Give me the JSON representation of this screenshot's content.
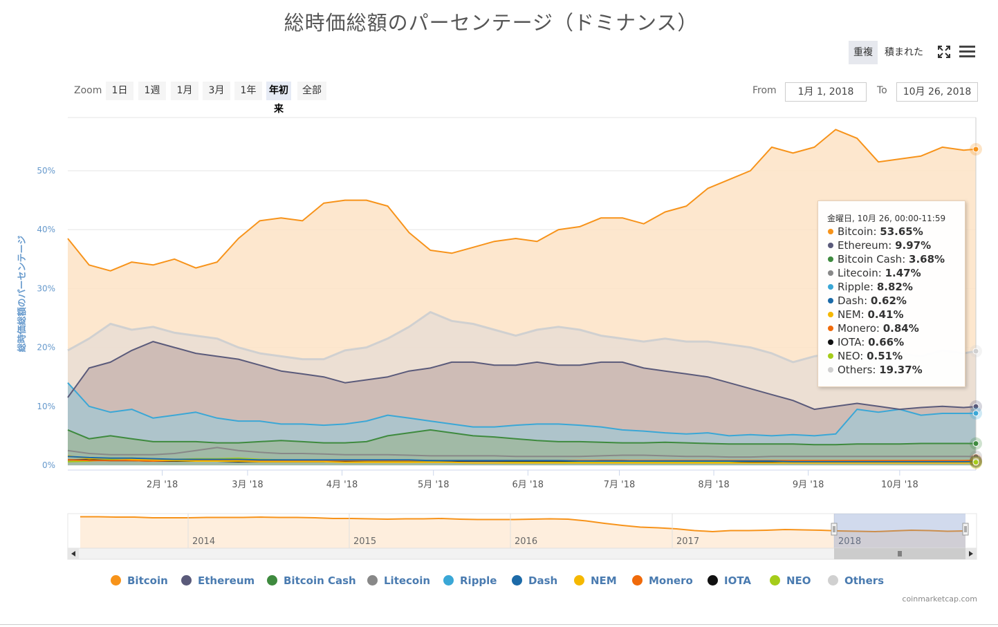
{
  "title": "総時価総額のパーセンテージ（ドミナンス）",
  "toolbar": {
    "overlap_label": "重複",
    "stacked_label": "積まれた",
    "fullscreen_icon": "fullscreen-icon",
    "menu_icon": "hamburger-menu-icon"
  },
  "zoom": {
    "label": "Zoom",
    "buttons": [
      "1日",
      "1週",
      "1月",
      "3月",
      "1年",
      "年初来",
      "全部"
    ],
    "active": "年初来"
  },
  "range": {
    "from_label": "From",
    "from_value": "1月 1, 2018",
    "to_label": "To",
    "to_value": "10月 26, 2018"
  },
  "tooltip": {
    "header": "金曜日, 10月 26, 00:00-11:59",
    "rows": [
      {
        "name": "Bitcoin",
        "value": "53.65%"
      },
      {
        "name": "Ethereum",
        "value": "9.97%"
      },
      {
        "name": "Bitcoin Cash",
        "value": "3.68%"
      },
      {
        "name": "Litecoin",
        "value": "1.47%"
      },
      {
        "name": "Ripple",
        "value": "8.82%"
      },
      {
        "name": "Dash",
        "value": "0.62%"
      },
      {
        "name": "NEM",
        "value": "0.41%"
      },
      {
        "name": "Monero",
        "value": "0.84%"
      },
      {
        "name": "IOTA",
        "value": "0.66%"
      },
      {
        "name": "NEO",
        "value": "0.51%"
      },
      {
        "name": "Others",
        "value": "19.37%"
      }
    ]
  },
  "credits": "coinmarketcap.com",
  "chart_data": {
    "type": "area",
    "title": "総時価総額のパーセンテージ（ドミナンス）",
    "ylabel": "総時価総額のパーセンテージ",
    "ylim": [
      0,
      60
    ],
    "yticks": [
      0,
      10,
      20,
      30,
      40,
      50
    ],
    "ytick_labels": [
      "0%",
      "10%",
      "20%",
      "30%",
      "40%",
      "50%"
    ],
    "xlim": [
      "2018-01-01",
      "2018-10-26"
    ],
    "xticks": [
      {
        "date": "2018-02-01",
        "label": "2月 '18"
      },
      {
        "date": "2018-03-01",
        "label": "3月 '18"
      },
      {
        "date": "2018-04-01",
        "label": "4月 '18"
      },
      {
        "date": "2018-05-01",
        "label": "5月 '18"
      },
      {
        "date": "2018-06-01",
        "label": "6月 '18"
      },
      {
        "date": "2018-07-01",
        "label": "7月 '18"
      },
      {
        "date": "2018-08-01",
        "label": "8月 '18"
      },
      {
        "date": "2018-09-01",
        "label": "9月 '18"
      },
      {
        "date": "2018-10-01",
        "label": "10月 '18"
      }
    ],
    "grid": true,
    "legend_position": "bottom",
    "x": [
      "2018-01-01",
      "2018-01-08",
      "2018-01-15",
      "2018-01-22",
      "2018-01-29",
      "2018-02-05",
      "2018-02-12",
      "2018-02-19",
      "2018-02-26",
      "2018-03-05",
      "2018-03-12",
      "2018-03-19",
      "2018-03-26",
      "2018-04-02",
      "2018-04-09",
      "2018-04-16",
      "2018-04-23",
      "2018-04-30",
      "2018-05-07",
      "2018-05-14",
      "2018-05-21",
      "2018-05-28",
      "2018-06-04",
      "2018-06-11",
      "2018-06-18",
      "2018-06-25",
      "2018-07-02",
      "2018-07-09",
      "2018-07-16",
      "2018-07-23",
      "2018-07-30",
      "2018-08-06",
      "2018-08-13",
      "2018-08-20",
      "2018-08-27",
      "2018-09-03",
      "2018-09-10",
      "2018-09-17",
      "2018-09-24",
      "2018-10-01",
      "2018-10-08",
      "2018-10-15",
      "2018-10-22",
      "2018-10-26"
    ],
    "series": [
      {
        "name": "Bitcoin",
        "color": "#f7931a",
        "fill": "#fde3c6",
        "values": [
          38.5,
          34.0,
          33.0,
          34.5,
          34.0,
          35.0,
          33.5,
          34.5,
          38.5,
          41.5,
          42.0,
          41.5,
          44.5,
          45.0,
          45.0,
          44.0,
          39.5,
          36.5,
          36.0,
          37.0,
          38.0,
          38.5,
          38.0,
          40.0,
          40.5,
          42.0,
          42.0,
          41.0,
          43.0,
          44.0,
          47.0,
          48.5,
          50.0,
          54.0,
          53.0,
          54.0,
          57.0,
          55.5,
          51.5,
          52.0,
          52.5,
          54.0,
          53.5,
          53.65
        ]
      },
      {
        "name": "Ethereum",
        "color": "#5a5a7a",
        "fill": "#c9b6b0",
        "values": [
          11.5,
          16.5,
          17.5,
          19.5,
          21.0,
          20.0,
          19.0,
          18.5,
          18.0,
          17.0,
          16.0,
          15.5,
          15.0,
          14.0,
          14.5,
          15.0,
          16.0,
          16.5,
          17.5,
          17.5,
          17.0,
          17.0,
          17.5,
          17.0,
          17.0,
          17.5,
          17.5,
          16.5,
          16.0,
          15.5,
          15.0,
          14.0,
          13.0,
          12.0,
          11.0,
          9.5,
          10.0,
          10.5,
          10.0,
          9.5,
          9.8,
          10.0,
          9.8,
          9.97
        ]
      },
      {
        "name": "Bitcoin Cash",
        "color": "#3e8a3e",
        "fill": "#9fb8a0",
        "values": [
          6.0,
          4.5,
          5.0,
          4.5,
          4.0,
          4.0,
          4.0,
          3.8,
          3.8,
          4.0,
          4.2,
          4.0,
          3.8,
          3.8,
          4.0,
          5.0,
          5.5,
          6.0,
          5.5,
          5.0,
          4.8,
          4.5,
          4.2,
          4.0,
          4.0,
          3.9,
          3.8,
          3.8,
          3.9,
          3.8,
          3.7,
          3.6,
          3.6,
          3.6,
          3.6,
          3.5,
          3.5,
          3.6,
          3.6,
          3.6,
          3.7,
          3.7,
          3.7,
          3.68
        ]
      },
      {
        "name": "Litecoin",
        "color": "#888888",
        "values": [
          2.5,
          2.0,
          1.8,
          1.8,
          1.8,
          2.0,
          2.5,
          3.0,
          2.5,
          2.2,
          2.0,
          2.0,
          1.9,
          1.8,
          1.8,
          1.8,
          1.7,
          1.6,
          1.6,
          1.6,
          1.6,
          1.5,
          1.5,
          1.5,
          1.5,
          1.6,
          1.7,
          1.7,
          1.6,
          1.5,
          1.5,
          1.4,
          1.4,
          1.5,
          1.5,
          1.5,
          1.5,
          1.5,
          1.5,
          1.5,
          1.5,
          1.5,
          1.5,
          1.47
        ]
      },
      {
        "name": "Ripple",
        "color": "#3aa7d6",
        "fill": "#a8c6cf",
        "values": [
          14.0,
          10.0,
          9.0,
          9.5,
          8.0,
          8.5,
          9.0,
          8.0,
          7.5,
          7.5,
          7.0,
          7.0,
          6.8,
          7.0,
          7.5,
          8.5,
          8.0,
          7.5,
          7.0,
          6.5,
          6.5,
          6.8,
          7.0,
          7.0,
          6.8,
          6.5,
          6.0,
          5.8,
          5.5,
          5.3,
          5.5,
          5.0,
          5.2,
          5.0,
          5.2,
          5.0,
          5.3,
          9.5,
          9.0,
          9.5,
          8.5,
          8.8,
          8.8,
          8.82
        ]
      },
      {
        "name": "Dash",
        "color": "#1c6aa8",
        "values": [
          1.5,
          1.3,
          1.2,
          1.2,
          1.1,
          1.0,
          1.0,
          1.0,
          1.0,
          0.9,
          0.9,
          0.9,
          0.9,
          0.9,
          0.9,
          0.9,
          0.9,
          0.8,
          0.8,
          0.8,
          0.8,
          0.8,
          0.8,
          0.8,
          0.7,
          0.7,
          0.7,
          0.7,
          0.7,
          0.7,
          0.7,
          0.7,
          0.7,
          0.7,
          0.6,
          0.6,
          0.6,
          0.6,
          0.6,
          0.6,
          0.6,
          0.6,
          0.6,
          0.62
        ]
      },
      {
        "name": "NEM",
        "color": "#f5b800",
        "values": [
          1.6,
          1.1,
          1.2,
          1.0,
          0.9,
          0.8,
          0.7,
          0.7,
          0.7,
          0.6,
          0.6,
          0.6,
          0.6,
          0.5,
          0.5,
          0.5,
          0.5,
          0.5,
          0.5,
          0.4,
          0.4,
          0.4,
          0.4,
          0.4,
          0.4,
          0.4,
          0.4,
          0.4,
          0.4,
          0.4,
          0.4,
          0.4,
          0.4,
          0.4,
          0.4,
          0.4,
          0.4,
          0.4,
          0.4,
          0.4,
          0.4,
          0.4,
          0.4,
          0.41
        ]
      },
      {
        "name": "Monero",
        "color": "#f06a0a",
        "values": [
          0.9,
          0.8,
          0.8,
          0.8,
          0.7,
          0.8,
          0.9,
          0.9,
          0.9,
          0.8,
          0.8,
          0.8,
          0.8,
          0.8,
          0.8,
          0.8,
          0.8,
          0.8,
          0.8,
          0.8,
          0.8,
          0.8,
          0.8,
          0.8,
          0.8,
          0.8,
          0.8,
          0.8,
          0.8,
          0.8,
          0.8,
          0.8,
          0.8,
          0.8,
          0.8,
          0.8,
          0.8,
          0.8,
          0.8,
          0.8,
          0.8,
          0.8,
          0.8,
          0.84
        ]
      },
      {
        "name": "IOTA",
        "color": "#111111",
        "values": [
          0.9,
          0.9,
          0.8,
          0.8,
          0.7,
          0.7,
          0.7,
          0.7,
          0.6,
          0.6,
          0.6,
          0.6,
          0.6,
          0.7,
          0.8,
          0.8,
          0.8,
          0.8,
          0.7,
          0.7,
          0.7,
          0.7,
          0.7,
          0.7,
          0.7,
          0.8,
          0.8,
          0.7,
          0.7,
          0.7,
          0.7,
          0.7,
          0.6,
          0.6,
          0.6,
          0.6,
          0.6,
          0.6,
          0.6,
          0.6,
          0.6,
          0.6,
          0.6,
          0.66
        ]
      },
      {
        "name": "NEO",
        "color": "#a5cc1a",
        "values": [
          0.6,
          0.7,
          1.0,
          1.2,
          1.0,
          1.0,
          1.1,
          1.1,
          1.2,
          1.0,
          0.9,
          0.8,
          0.7,
          0.7,
          0.7,
          0.7,
          0.7,
          0.7,
          0.7,
          0.7,
          0.7,
          0.6,
          0.6,
          0.6,
          0.6,
          0.6,
          0.6,
          0.6,
          0.6,
          0.6,
          0.5,
          0.5,
          0.5,
          0.5,
          0.5,
          0.5,
          0.5,
          0.5,
          0.5,
          0.5,
          0.5,
          0.5,
          0.5,
          0.51
        ]
      },
      {
        "name": "Others",
        "color": "#d0d0d0",
        "fill": "#e9ddd4",
        "values": [
          19.5,
          21.5,
          24.0,
          23.0,
          23.5,
          22.5,
          22.0,
          21.5,
          20.0,
          19.0,
          18.5,
          18.0,
          18.0,
          19.5,
          20.0,
          21.5,
          23.5,
          26.0,
          24.5,
          24.0,
          23.0,
          22.0,
          23.0,
          23.5,
          23.0,
          22.0,
          21.5,
          21.0,
          21.5,
          21.0,
          21.0,
          20.5,
          20.0,
          19.0,
          17.5,
          18.5,
          19.0,
          18.5,
          19.0,
          19.0,
          18.5,
          19.5,
          19.0,
          19.37
        ]
      }
    ],
    "navigator": {
      "xticks": [
        "2014",
        "2015",
        "2016",
        "2017",
        "2018"
      ],
      "bitcoin": [
        95,
        95,
        94,
        94,
        92,
        92,
        92,
        93,
        93,
        93,
        94,
        93,
        93,
        92,
        90,
        90,
        89,
        88,
        89,
        89,
        90,
        88,
        87,
        87,
        87,
        88,
        89,
        88,
        83,
        76,
        70,
        65,
        63,
        60,
        55,
        52,
        55,
        55,
        56,
        58,
        57,
        56,
        54,
        53,
        52,
        54,
        56,
        55,
        53,
        54
      ]
    }
  },
  "legend": [
    "Bitcoin",
    "Ethereum",
    "Bitcoin Cash",
    "Litecoin",
    "Ripple",
    "Dash",
    "NEM",
    "Monero",
    "IOTA",
    "NEO",
    "Others"
  ]
}
